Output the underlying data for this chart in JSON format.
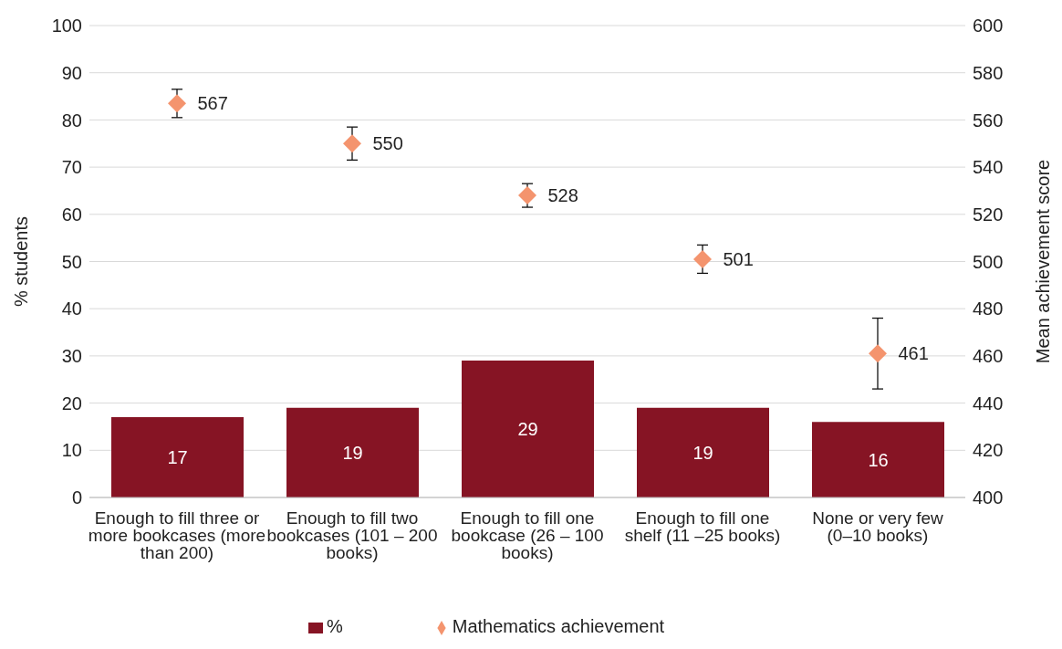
{
  "chart_data": {
    "type": "bar",
    "ylabel": "% students",
    "y2label": "Mean achievement score",
    "categories": [
      "Enough to fill three or more bookcases (more than 200)",
      "Enough to fill two bookcases (101 – 200 books)",
      "Enough to fill one bookcase (26 – 100 books)",
      "Enough to fill one shelf (11 –25 books)",
      "None or very few (0–10 books)"
    ],
    "series": [
      {
        "name": "%",
        "color": "#861424",
        "values": [
          17,
          19,
          29,
          19,
          16
        ]
      },
      {
        "name": "Mathematics achievement",
        "type": "scatter",
        "axis": "y2",
        "color": "#f4946e",
        "values": [
          567,
          550,
          528,
          501,
          461
        ],
        "errors": [
          6,
          7,
          5,
          6,
          15
        ]
      }
    ],
    "ylim": [
      0,
      100
    ],
    "yticks": [
      0,
      10,
      20,
      30,
      40,
      50,
      60,
      70,
      80,
      90,
      100
    ],
    "y2lim": [
      400,
      600
    ],
    "y2ticks": [
      400,
      420,
      440,
      460,
      480,
      500,
      520,
      540,
      560,
      580,
      600
    ],
    "grid": "y",
    "legend": "bottom",
    "marker": "diamond",
    "data_labels": true
  }
}
